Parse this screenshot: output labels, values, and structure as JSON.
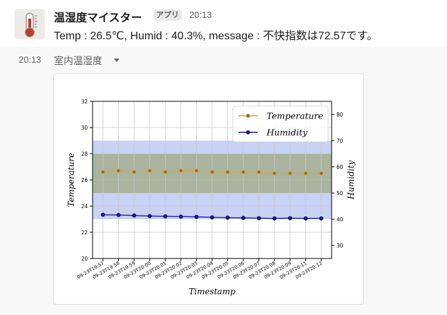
{
  "message": {
    "sender": "温湿度マイスター",
    "badge": "アプリ",
    "time": "20:13",
    "text": "Temp : 26.5℃, Humid : 40.3%, message : 不快指数は72.57です。",
    "avatar_icon": "thermometer-icon"
  },
  "attachment": {
    "time": "20:13",
    "title": "室内温湿度",
    "caret_icon": "caret-down-icon"
  },
  "colors": {
    "temperature_line": "#d9a83a",
    "temperature_marker": "#8a6a2a",
    "humidity_line": "#1a1aa0",
    "band_outer": "#c8d2f5",
    "band_inner": "#a9b39e"
  },
  "chart_data": {
    "type": "line",
    "xlabel": "Timestamp",
    "categories": [
      "09-23T19:57",
      "09-23T19:58",
      "09-23T19:59",
      "09-23T20:00",
      "09-23T20:01",
      "09-23T20:02",
      "09-23T20:03",
      "09-23T20:04",
      "09-23T20:05",
      "09-23T20:06",
      "09-23T20:07",
      "09-23T20:08",
      "09-23T20:09",
      "09-23T20:11",
      "09-23T20:12"
    ],
    "left_axis": {
      "label": "Temperature",
      "ylim": [
        20,
        32
      ],
      "ticks": [
        "20",
        "22",
        "24",
        "26",
        "28",
        "30",
        "32"
      ]
    },
    "right_axis": {
      "label": "Humidity",
      "ylim": [
        25,
        85
      ],
      "ticks": [
        "30",
        "40",
        "50",
        "60",
        "70",
        "80"
      ]
    },
    "series": [
      {
        "name": "Temperature",
        "axis": "left",
        "values": [
          26.6,
          26.7,
          26.6,
          26.7,
          26.6,
          26.7,
          26.7,
          26.6,
          26.6,
          26.6,
          26.6,
          26.5,
          26.5,
          26.5,
          26.5
        ]
      },
      {
        "name": "Humidity",
        "axis": "right",
        "values": [
          41.7,
          41.6,
          41.4,
          41.2,
          41.1,
          41.0,
          40.9,
          40.7,
          40.6,
          40.5,
          40.4,
          40.3,
          40.4,
          40.3,
          40.3
        ]
      }
    ],
    "bands": [
      {
        "axis": "left",
        "range": [
          23,
          29
        ],
        "kind": "outer"
      },
      {
        "axis": "left",
        "range": [
          25,
          28
        ],
        "kind": "inner"
      }
    ],
    "grid": true,
    "legend_position": "top-right"
  }
}
